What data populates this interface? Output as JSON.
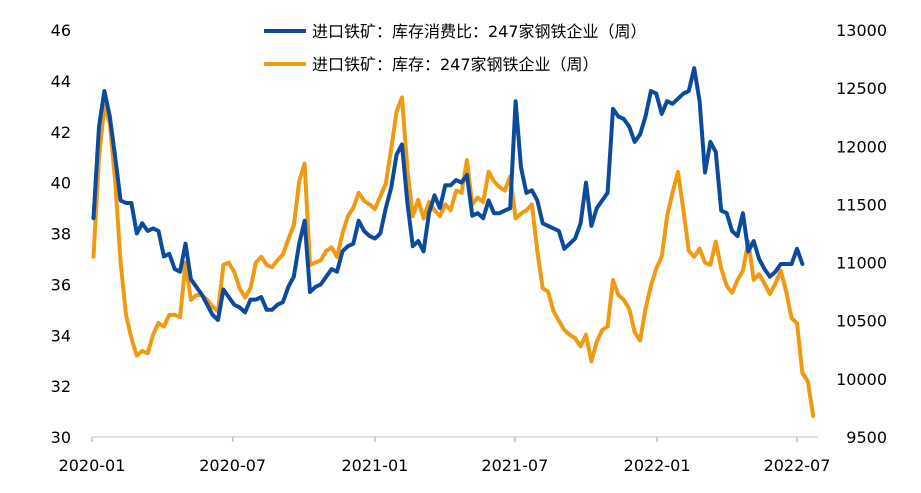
{
  "chart_data": {
    "type": "line",
    "legend_placement": "top-center",
    "grid": false,
    "x_axis": {
      "type": "date",
      "range": [
        "2020-01",
        "2022-07"
      ],
      "tick_labels": [
        "2020-01",
        "2020-07",
        "2021-01",
        "2021-07",
        "2022-01",
        "2022-07"
      ]
    },
    "y_left": {
      "range": [
        30,
        46
      ],
      "ticks": [
        30,
        32,
        34,
        36,
        38,
        40,
        42,
        44,
        46
      ],
      "tick_labels": [
        "30",
        "32",
        "34",
        "36",
        "38",
        "40",
        "42",
        "44",
        "46"
      ]
    },
    "y_right": {
      "range": [
        9500,
        13000
      ],
      "ticks": [
        9500,
        10000,
        10500,
        11000,
        11500,
        12000,
        12500,
        13000
      ],
      "tick_labels": [
        "9500",
        "10000",
        "10500",
        "11000",
        "11500",
        "12000",
        "12500",
        "13000"
      ]
    },
    "series": [
      {
        "name": "进口铁矿：库存消费比：247家钢铁企业（周）",
        "axis": "left",
        "color": "#0b4a9c",
        "points": [
          [
            "2020-01-03",
            38.6
          ],
          [
            "2020-01-10",
            42.2
          ],
          [
            "2020-01-17",
            43.6
          ],
          [
            "2020-01-24",
            42.6
          ],
          [
            "2020-01-31",
            41.0
          ],
          [
            "2020-02-07",
            39.3
          ],
          [
            "2020-02-14",
            39.2
          ],
          [
            "2020-02-21",
            39.2
          ],
          [
            "2020-02-28",
            38.0
          ],
          [
            "2020-03-06",
            38.4
          ],
          [
            "2020-03-13",
            38.1
          ],
          [
            "2020-03-20",
            38.2
          ],
          [
            "2020-03-27",
            38.1
          ],
          [
            "2020-04-03",
            37.1
          ],
          [
            "2020-04-10",
            37.2
          ],
          [
            "2020-04-17",
            36.6
          ],
          [
            "2020-04-24",
            36.5
          ],
          [
            "2020-05-01",
            37.6
          ],
          [
            "2020-05-08",
            36.2
          ],
          [
            "2020-05-15",
            35.9
          ],
          [
            "2020-05-22",
            35.6
          ],
          [
            "2020-05-29",
            35.2
          ],
          [
            "2020-06-05",
            34.8
          ],
          [
            "2020-06-12",
            34.6
          ],
          [
            "2020-06-19",
            35.8
          ],
          [
            "2020-06-26",
            35.5
          ],
          [
            "2020-07-03",
            35.2
          ],
          [
            "2020-07-10",
            35.1
          ],
          [
            "2020-07-17",
            34.9
          ],
          [
            "2020-07-24",
            35.4
          ],
          [
            "2020-07-31",
            35.4
          ],
          [
            "2020-08-07",
            35.5
          ],
          [
            "2020-08-14",
            35.0
          ],
          [
            "2020-08-21",
            35.0
          ],
          [
            "2020-08-28",
            35.2
          ],
          [
            "2020-09-04",
            35.3
          ],
          [
            "2020-09-11",
            35.9
          ],
          [
            "2020-09-18",
            36.3
          ],
          [
            "2020-09-25",
            37.6
          ],
          [
            "2020-10-02",
            38.5
          ],
          [
            "2020-10-09",
            35.7
          ],
          [
            "2020-10-16",
            35.9
          ],
          [
            "2020-10-23",
            36.0
          ],
          [
            "2020-10-30",
            36.3
          ],
          [
            "2020-11-06",
            36.6
          ],
          [
            "2020-11-13",
            36.5
          ],
          [
            "2020-11-20",
            37.3
          ],
          [
            "2020-11-27",
            37.5
          ],
          [
            "2020-12-04",
            37.6
          ],
          [
            "2020-12-11",
            38.5
          ],
          [
            "2020-12-18",
            38.1
          ],
          [
            "2020-12-25",
            37.9
          ],
          [
            "2021-01-01",
            37.8
          ],
          [
            "2021-01-08",
            38.0
          ],
          [
            "2021-01-15",
            39.0
          ],
          [
            "2021-01-22",
            39.8
          ],
          [
            "2021-01-29",
            41.1
          ],
          [
            "2021-02-05",
            41.5
          ],
          [
            "2021-02-12",
            39.2
          ],
          [
            "2021-02-19",
            37.5
          ],
          [
            "2021-02-26",
            37.7
          ],
          [
            "2021-03-05",
            37.3
          ],
          [
            "2021-03-12",
            38.8
          ],
          [
            "2021-03-19",
            39.5
          ],
          [
            "2021-03-26",
            39.0
          ],
          [
            "2021-04-02",
            39.9
          ],
          [
            "2021-04-09",
            39.9
          ],
          [
            "2021-04-16",
            40.1
          ],
          [
            "2021-04-23",
            40.0
          ],
          [
            "2021-04-30",
            40.3
          ],
          [
            "2021-05-07",
            38.7
          ],
          [
            "2021-05-14",
            38.8
          ],
          [
            "2021-05-21",
            38.6
          ],
          [
            "2021-05-28",
            39.3
          ],
          [
            "2021-06-04",
            38.8
          ],
          [
            "2021-06-11",
            38.8
          ],
          [
            "2021-06-18",
            38.9
          ],
          [
            "2021-06-25",
            39.0
          ],
          [
            "2021-07-02",
            43.2
          ],
          [
            "2021-07-09",
            40.6
          ],
          [
            "2021-07-16",
            39.6
          ],
          [
            "2021-07-23",
            39.7
          ],
          [
            "2021-07-30",
            39.3
          ],
          [
            "2021-08-06",
            38.4
          ],
          [
            "2021-08-13",
            38.3
          ],
          [
            "2021-08-20",
            38.2
          ],
          [
            "2021-08-27",
            38.1
          ],
          [
            "2021-09-03",
            37.4
          ],
          [
            "2021-09-10",
            37.6
          ],
          [
            "2021-09-17",
            37.8
          ],
          [
            "2021-09-24",
            38.4
          ],
          [
            "2021-10-01",
            40.0
          ],
          [
            "2021-10-08",
            38.3
          ],
          [
            "2021-10-15",
            39.0
          ],
          [
            "2021-10-22",
            39.3
          ],
          [
            "2021-10-29",
            39.6
          ],
          [
            "2021-11-05",
            42.9
          ],
          [
            "2021-11-12",
            42.6
          ],
          [
            "2021-11-19",
            42.5
          ],
          [
            "2021-11-26",
            42.2
          ],
          [
            "2021-12-03",
            41.6
          ],
          [
            "2021-12-10",
            41.9
          ],
          [
            "2021-12-17",
            42.6
          ],
          [
            "2021-12-24",
            43.6
          ],
          [
            "2021-12-31",
            43.5
          ],
          [
            "2022-01-07",
            42.7
          ],
          [
            "2022-01-14",
            43.2
          ],
          [
            "2022-01-21",
            43.1
          ],
          [
            "2022-01-28",
            43.3
          ],
          [
            "2022-02-04",
            43.5
          ],
          [
            "2022-02-11",
            43.6
          ],
          [
            "2022-02-18",
            44.5
          ],
          [
            "2022-02-25",
            43.2
          ],
          [
            "2022-03-04",
            40.4
          ],
          [
            "2022-03-11",
            41.6
          ],
          [
            "2022-03-18",
            41.2
          ],
          [
            "2022-03-25",
            38.9
          ],
          [
            "2022-04-01",
            38.8
          ],
          [
            "2022-04-08",
            38.1
          ],
          [
            "2022-04-15",
            37.9
          ],
          [
            "2022-04-22",
            38.8
          ],
          [
            "2022-04-29",
            37.3
          ],
          [
            "2022-05-06",
            37.7
          ],
          [
            "2022-05-13",
            37.0
          ],
          [
            "2022-05-20",
            36.6
          ],
          [
            "2022-05-27",
            36.3
          ],
          [
            "2022-06-03",
            36.5
          ],
          [
            "2022-06-10",
            36.8
          ],
          [
            "2022-06-17",
            36.8
          ],
          [
            "2022-06-24",
            36.8
          ],
          [
            "2022-07-01",
            37.4
          ],
          [
            "2022-07-08",
            36.8
          ]
        ]
      },
      {
        "name": "进口铁矿：库存：247家钢铁企业（周）",
        "axis": "right",
        "color": "#f09a12",
        "points": [
          [
            "2020-01-03",
            11050
          ],
          [
            "2020-01-10",
            11900
          ],
          [
            "2020-01-17",
            12350
          ],
          [
            "2020-01-24",
            12200
          ],
          [
            "2020-01-31",
            11700
          ],
          [
            "2020-02-07",
            11000
          ],
          [
            "2020-02-14",
            10550
          ],
          [
            "2020-02-21",
            10350
          ],
          [
            "2020-02-28",
            10200
          ],
          [
            "2020-03-06",
            10240
          ],
          [
            "2020-03-13",
            10220
          ],
          [
            "2020-03-20",
            10380
          ],
          [
            "2020-03-27",
            10480
          ],
          [
            "2020-04-03",
            10450
          ],
          [
            "2020-04-10",
            10550
          ],
          [
            "2020-04-17",
            10550
          ],
          [
            "2020-04-24",
            10530
          ],
          [
            "2020-05-01",
            11000
          ],
          [
            "2020-05-08",
            10680
          ],
          [
            "2020-05-15",
            10720
          ],
          [
            "2020-05-22",
            10720
          ],
          [
            "2020-05-29",
            10680
          ],
          [
            "2020-06-05",
            10620
          ],
          [
            "2020-06-12",
            10580
          ],
          [
            "2020-06-19",
            10980
          ],
          [
            "2020-06-26",
            11000
          ],
          [
            "2020-07-03",
            10920
          ],
          [
            "2020-07-10",
            10780
          ],
          [
            "2020-07-17",
            10700
          ],
          [
            "2020-07-24",
            10780
          ],
          [
            "2020-07-31",
            11000
          ],
          [
            "2020-08-07",
            11050
          ],
          [
            "2020-08-14",
            10980
          ],
          [
            "2020-08-21",
            10960
          ],
          [
            "2020-08-28",
            11020
          ],
          [
            "2020-09-04",
            11070
          ],
          [
            "2020-09-11",
            11200
          ],
          [
            "2020-09-18",
            11320
          ],
          [
            "2020-09-25",
            11700
          ],
          [
            "2020-10-02",
            11850
          ],
          [
            "2020-10-09",
            10980
          ],
          [
            "2020-10-16",
            11000
          ],
          [
            "2020-10-23",
            11020
          ],
          [
            "2020-10-30",
            11100
          ],
          [
            "2020-11-06",
            11130
          ],
          [
            "2020-11-13",
            11050
          ],
          [
            "2020-11-20",
            11250
          ],
          [
            "2020-11-27",
            11400
          ],
          [
            "2020-12-04",
            11470
          ],
          [
            "2020-12-11",
            11600
          ],
          [
            "2020-12-18",
            11530
          ],
          [
            "2020-12-25",
            11500
          ],
          [
            "2021-01-01",
            11460
          ],
          [
            "2021-01-08",
            11570
          ],
          [
            "2021-01-15",
            11680
          ],
          [
            "2021-01-22",
            11980
          ],
          [
            "2021-01-29",
            12300
          ],
          [
            "2021-02-05",
            12420
          ],
          [
            "2021-02-12",
            11800
          ],
          [
            "2021-02-19",
            11400
          ],
          [
            "2021-02-26",
            11540
          ],
          [
            "2021-03-05",
            11380
          ],
          [
            "2021-03-12",
            11520
          ],
          [
            "2021-03-19",
            11450
          ],
          [
            "2021-03-26",
            11400
          ],
          [
            "2021-04-02",
            11500
          ],
          [
            "2021-04-09",
            11450
          ],
          [
            "2021-04-16",
            11620
          ],
          [
            "2021-04-23",
            11600
          ],
          [
            "2021-04-30",
            11880
          ],
          [
            "2021-05-07",
            11500
          ],
          [
            "2021-05-14",
            11560
          ],
          [
            "2021-05-21",
            11520
          ],
          [
            "2021-05-28",
            11780
          ],
          [
            "2021-06-04",
            11700
          ],
          [
            "2021-06-11",
            11650
          ],
          [
            "2021-06-18",
            11620
          ],
          [
            "2021-06-25",
            11740
          ],
          [
            "2021-07-02",
            11380
          ],
          [
            "2021-07-09",
            11420
          ],
          [
            "2021-07-16",
            11450
          ],
          [
            "2021-07-23",
            11500
          ],
          [
            "2021-07-30",
            11100
          ],
          [
            "2021-08-06",
            10780
          ],
          [
            "2021-08-13",
            10750
          ],
          [
            "2021-08-20",
            10580
          ],
          [
            "2021-08-27",
            10500
          ],
          [
            "2021-09-03",
            10420
          ],
          [
            "2021-09-10",
            10380
          ],
          [
            "2021-09-17",
            10350
          ],
          [
            "2021-09-24",
            10280
          ],
          [
            "2021-10-01",
            10380
          ],
          [
            "2021-10-08",
            10150
          ],
          [
            "2021-10-15",
            10320
          ],
          [
            "2021-10-22",
            10420
          ],
          [
            "2021-10-29",
            10450
          ],
          [
            "2021-11-05",
            10850
          ],
          [
            "2021-11-12",
            10720
          ],
          [
            "2021-11-19",
            10680
          ],
          [
            "2021-11-26",
            10600
          ],
          [
            "2021-12-03",
            10400
          ],
          [
            "2021-12-10",
            10330
          ],
          [
            "2021-12-17",
            10600
          ],
          [
            "2021-12-24",
            10800
          ],
          [
            "2021-12-31",
            10950
          ],
          [
            "2022-01-07",
            11050
          ],
          [
            "2022-01-14",
            11400
          ],
          [
            "2022-01-21",
            11600
          ],
          [
            "2022-01-28",
            11780
          ],
          [
            "2022-02-04",
            11450
          ],
          [
            "2022-02-11",
            11100
          ],
          [
            "2022-02-18",
            11050
          ],
          [
            "2022-02-25",
            11120
          ],
          [
            "2022-03-04",
            11000
          ],
          [
            "2022-03-11",
            10980
          ],
          [
            "2022-03-18",
            11180
          ],
          [
            "2022-03-25",
            10950
          ],
          [
            "2022-04-01",
            10800
          ],
          [
            "2022-04-08",
            10740
          ],
          [
            "2022-04-15",
            10850
          ],
          [
            "2022-04-22",
            10930
          ],
          [
            "2022-04-29",
            11180
          ],
          [
            "2022-05-06",
            10850
          ],
          [
            "2022-05-13",
            10900
          ],
          [
            "2022-05-20",
            10820
          ],
          [
            "2022-05-27",
            10730
          ],
          [
            "2022-06-03",
            10820
          ],
          [
            "2022-06-10",
            10930
          ],
          [
            "2022-06-17",
            10750
          ],
          [
            "2022-06-24",
            10520
          ],
          [
            "2022-07-01",
            10480
          ],
          [
            "2022-07-08",
            10050
          ],
          [
            "2022-07-15",
            9980
          ],
          [
            "2022-07-22",
            9680
          ]
        ]
      }
    ]
  }
}
